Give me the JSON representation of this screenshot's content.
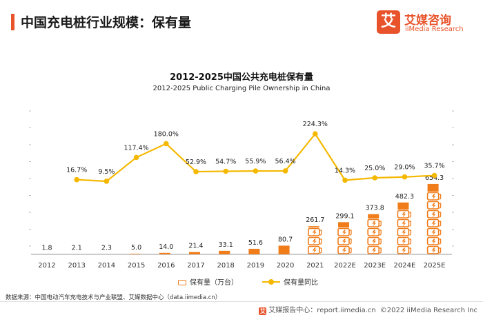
{
  "header": {
    "title": "中国充电桩行业规模：保有量"
  },
  "logo": {
    "mark": "艾",
    "cn": "艾媒咨询",
    "en": "iiMedia Research"
  },
  "colors": {
    "accent": "#e8532b",
    "bar": "#f07c1a",
    "line": "#f5b800",
    "axis": "#9a9a9a"
  },
  "chart_data": {
    "type": "bar",
    "title": "2012-2025中国公共充电桩保有量",
    "subtitle": "2012-2025 Public Charging Pile Ownership in China",
    "categories": [
      "2012",
      "2013",
      "2014",
      "2015",
      "2016",
      "2017",
      "2018",
      "2019",
      "2020",
      "2021",
      "2022E",
      "2023E",
      "2024E",
      "2025E"
    ],
    "series": [
      {
        "name": "保有量（万台）",
        "type": "bar",
        "values": [
          1.8,
          2.1,
          2.3,
          5.0,
          14.0,
          21.4,
          33.1,
          51.6,
          80.7,
          261.7,
          299.1,
          373.8,
          482.3,
          654.3
        ],
        "labels": [
          "1.8",
          "2.1",
          "2.3",
          "5.0",
          "14.0",
          "21.4",
          "33.1",
          "51.6",
          "80.7",
          "261.7",
          "299.1",
          "373.8",
          "482.3",
          "654.3"
        ]
      },
      {
        "name": "保有量同比",
        "type": "line",
        "unit": "%",
        "values": [
          null,
          16.7,
          9.5,
          117.4,
          180.0,
          52.9,
          54.7,
          55.9,
          56.4,
          224.3,
          14.3,
          25.0,
          29.0,
          35.7
        ],
        "labels": [
          "",
          "16.7%",
          "9.5%",
          "117.4%",
          "180.0%",
          "52.9%",
          "54.7%",
          "55.9%",
          "56.4%",
          "224.3%",
          "14.3%",
          "25.0%",
          "29.0%",
          "35.7%"
        ]
      }
    ],
    "legend_position": "bottom",
    "grid": false
  },
  "source_text": "数据来源：中国电动汽车充电技术与产业联盟、艾媒数据中心（data.iimedia.cn）",
  "footer": {
    "icon": "艾",
    "center_text": "艾媒报告中心：report.iimedia.cn",
    "copyright": "©2022  iiMedia Research  Inc"
  }
}
